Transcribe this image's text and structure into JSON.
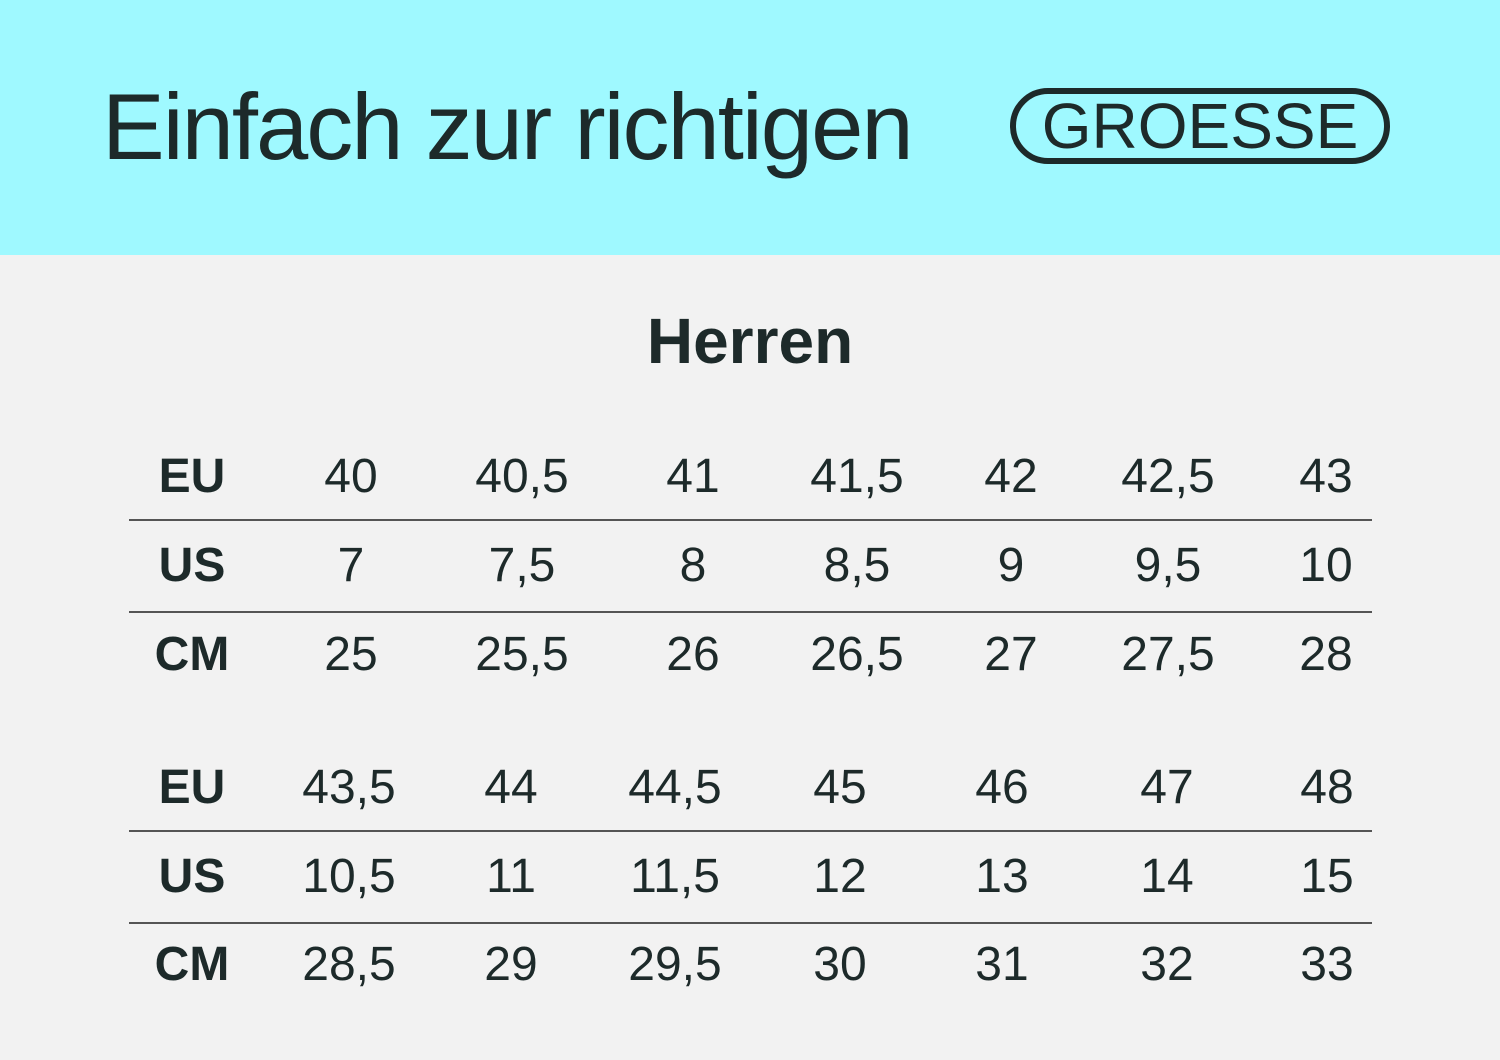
{
  "header": {
    "title": "Einfach zur richtigen",
    "badge": "GROESSE",
    "background": "#9ff9ff"
  },
  "section_title": "Herren",
  "tables": [
    {
      "rows": [
        {
          "label": "EU",
          "values": [
            "40",
            "40,5",
            "41",
            "41,5",
            "42",
            "42,5",
            "43"
          ]
        },
        {
          "label": "US",
          "values": [
            "7",
            "7,5",
            "8",
            "8,5",
            "9",
            "9,5",
            "10"
          ]
        },
        {
          "label": "CM",
          "values": [
            "25",
            "25,5",
            "26",
            "26,5",
            "27",
            "27,5",
            "28"
          ]
        }
      ]
    },
    {
      "rows": [
        {
          "label": "EU",
          "values": [
            "43,5",
            "44",
            "44,5",
            "45",
            "46",
            "47",
            "48"
          ]
        },
        {
          "label": "US",
          "values": [
            "10,5",
            "11",
            "11,5",
            "12",
            "13",
            "14",
            "15"
          ]
        },
        {
          "label": "CM",
          "values": [
            "28,5",
            "29",
            "29,5",
            "30",
            "31",
            "32",
            "33"
          ]
        }
      ]
    }
  ]
}
